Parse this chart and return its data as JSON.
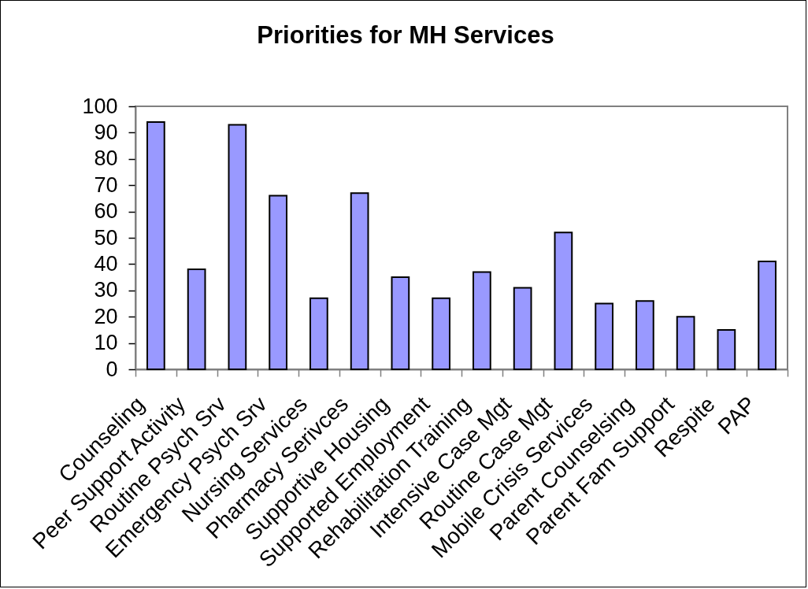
{
  "chart_data": {
    "type": "bar",
    "title": "Priorities for MH Services",
    "categories": [
      "Counseling",
      "Peer Support Activity",
      "Routine Psych Srv",
      "Emergency Psych Srv",
      "Nursing Services",
      "Pharmacy Serivces",
      "Supportive Housing",
      "Supported Employment",
      "Rehabilitation Training",
      "Intensive Case Mgt",
      "Routine Case Mgt",
      "Mobile Crisis Services",
      "Parent Counselsing",
      "Parent Fam Support",
      "Respite",
      "PAP"
    ],
    "values": [
      94,
      38,
      93,
      66,
      27,
      67,
      35,
      27,
      37,
      31,
      52,
      25,
      26,
      20,
      15,
      41
    ],
    "color": "#9999ff",
    "ylim": [
      0,
      100
    ],
    "yticks": [
      0,
      10,
      20,
      30,
      40,
      50,
      60,
      70,
      80,
      90,
      100
    ]
  }
}
